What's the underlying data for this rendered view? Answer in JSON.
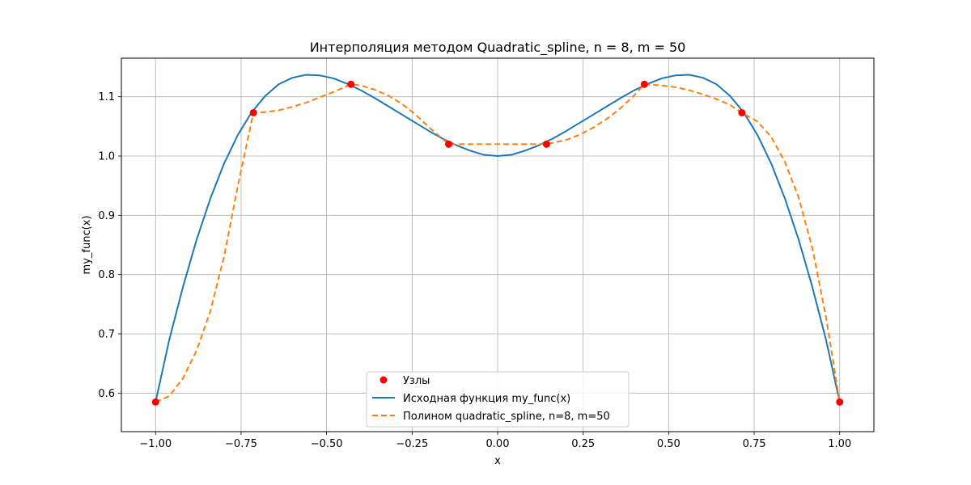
{
  "chart_data": {
    "type": "line",
    "title": "Интерполяция методом Quadratic_spline, n = 8, m = 50",
    "xlabel": "x",
    "ylabel": "my_func(x)",
    "xlim": [
      -1.1,
      1.1
    ],
    "ylim": [
      0.535,
      1.165
    ],
    "grid": true,
    "legend_position": "lower-center",
    "x_ticks": [
      -1.0,
      -0.75,
      -0.5,
      -0.25,
      0.0,
      0.25,
      0.5,
      0.75,
      1.0
    ],
    "x_tick_labels": [
      "−1.00",
      "−0.75",
      "−0.50",
      "−0.25",
      "0.00",
      "0.25",
      "0.50",
      "0.75",
      "1.00"
    ],
    "y_ticks": [
      0.6,
      0.7,
      0.8,
      0.9,
      1.0,
      1.1
    ],
    "y_tick_labels": [
      "0.6",
      "0.7",
      "0.8",
      "0.9",
      "1.0",
      "1.1"
    ],
    "series": [
      {
        "name": "Узлы",
        "kind": "scatter",
        "color": "#ff0000",
        "x": [
          -1.0,
          -0.714,
          -0.429,
          -0.143,
          0.143,
          0.429,
          0.714,
          1.0
        ],
        "y": [
          0.585,
          1.073,
          1.121,
          1.02,
          1.02,
          1.121,
          1.073,
          0.585
        ]
      },
      {
        "name": "Исходная функция my_func(x)",
        "kind": "line",
        "color": "#1f77b4",
        "x": [
          -1.0,
          -0.96,
          -0.92,
          -0.88,
          -0.84,
          -0.8,
          -0.76,
          -0.72,
          -0.68,
          -0.64,
          -0.6,
          -0.56,
          -0.52,
          -0.48,
          -0.44,
          -0.4,
          -0.36,
          -0.32,
          -0.28,
          -0.24,
          -0.2,
          -0.16,
          -0.12,
          -0.08,
          -0.04,
          0.0,
          0.04,
          0.08,
          0.12,
          0.16,
          0.2,
          0.24,
          0.28,
          0.32,
          0.36,
          0.4,
          0.44,
          0.48,
          0.52,
          0.56,
          0.6,
          0.64,
          0.68,
          0.72,
          0.76,
          0.8,
          0.84,
          0.88,
          0.92,
          0.96,
          1.0
        ],
        "y": [
          0.585,
          0.69,
          0.779,
          0.859,
          0.928,
          0.987,
          1.035,
          1.073,
          1.101,
          1.121,
          1.132,
          1.137,
          1.136,
          1.131,
          1.122,
          1.111,
          1.098,
          1.084,
          1.07,
          1.056,
          1.042,
          1.029,
          1.018,
          1.009,
          1.002,
          1.0,
          1.002,
          1.009,
          1.018,
          1.029,
          1.042,
          1.056,
          1.07,
          1.084,
          1.098,
          1.111,
          1.122,
          1.131,
          1.136,
          1.137,
          1.132,
          1.121,
          1.101,
          1.073,
          1.035,
          0.987,
          0.928,
          0.859,
          0.779,
          0.69,
          0.585
        ]
      },
      {
        "name": "Полином quadratic_spline, n=8, m=50",
        "kind": "line",
        "dashed": true,
        "color": "#ff7f0e",
        "x": [
          -1.0,
          -0.96,
          -0.92,
          -0.88,
          -0.84,
          -0.8,
          -0.76,
          -0.714,
          -0.68,
          -0.64,
          -0.6,
          -0.56,
          -0.52,
          -0.48,
          -0.429,
          -0.4,
          -0.36,
          -0.32,
          -0.28,
          -0.24,
          -0.2,
          -0.143,
          -0.1,
          0.0,
          0.1,
          0.143,
          0.2,
          0.24,
          0.28,
          0.32,
          0.36,
          0.4,
          0.429,
          0.48,
          0.52,
          0.56,
          0.6,
          0.64,
          0.68,
          0.714,
          0.76,
          0.8,
          0.84,
          0.88,
          0.92,
          0.96,
          1.0
        ],
        "y": [
          0.585,
          0.595,
          0.625,
          0.672,
          0.738,
          0.83,
          0.948,
          1.073,
          1.074,
          1.077,
          1.083,
          1.09,
          1.099,
          1.108,
          1.121,
          1.119,
          1.112,
          1.102,
          1.088,
          1.07,
          1.048,
          1.02,
          1.02,
          1.02,
          1.02,
          1.02,
          1.027,
          1.036,
          1.048,
          1.063,
          1.081,
          1.103,
          1.121,
          1.119,
          1.116,
          1.111,
          1.104,
          1.096,
          1.086,
          1.073,
          1.058,
          1.032,
          0.99,
          0.93,
          0.845,
          0.728,
          0.585
        ]
      }
    ]
  }
}
